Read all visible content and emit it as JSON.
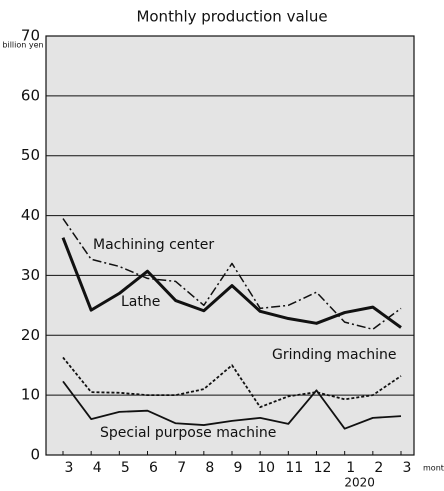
{
  "chart_data": {
    "type": "line",
    "title": "Monthly production value",
    "y_unit": "billion yen",
    "x_label": "mont",
    "year_annotation": "2020",
    "categories": [
      "3",
      "4",
      "5",
      "6",
      "7",
      "8",
      "9",
      "10",
      "11",
      "12",
      "1",
      "2",
      "3"
    ],
    "ylim": [
      0,
      70
    ],
    "yticks": [
      0,
      10,
      20,
      30,
      40,
      50,
      60,
      70
    ],
    "grid": true,
    "series": [
      {
        "name": "Machining center",
        "color": "#111111",
        "style": "dash-dot",
        "width": 1.5,
        "values": [
          39.5,
          32.7,
          31.5,
          29.5,
          29,
          25,
          32,
          24.5,
          25,
          27.2,
          22.2,
          21,
          24.5
        ]
      },
      {
        "name": "Lathe",
        "color": "#111111",
        "style": "solid",
        "width": 3,
        "values": [
          36.3,
          24.2,
          27,
          30.7,
          25.8,
          24.1,
          28.3,
          24,
          22.8,
          22,
          23.8,
          24.7,
          21.3
        ]
      },
      {
        "name": "Grinding machine",
        "color": "#111111",
        "style": "dotted",
        "width": 1.8,
        "values": [
          16.3,
          10.5,
          10.4,
          10,
          10,
          11,
          15,
          8,
          9.8,
          10.5,
          9.3,
          10,
          13.2
        ]
      },
      {
        "name": "Special purpose machine",
        "color": "#111111",
        "style": "solid",
        "width": 1.8,
        "values": [
          12.3,
          6,
          7.2,
          7.4,
          5.3,
          5,
          5.7,
          6.2,
          5.2,
          10.8,
          4.4,
          6.2,
          6.5
        ]
      }
    ]
  }
}
